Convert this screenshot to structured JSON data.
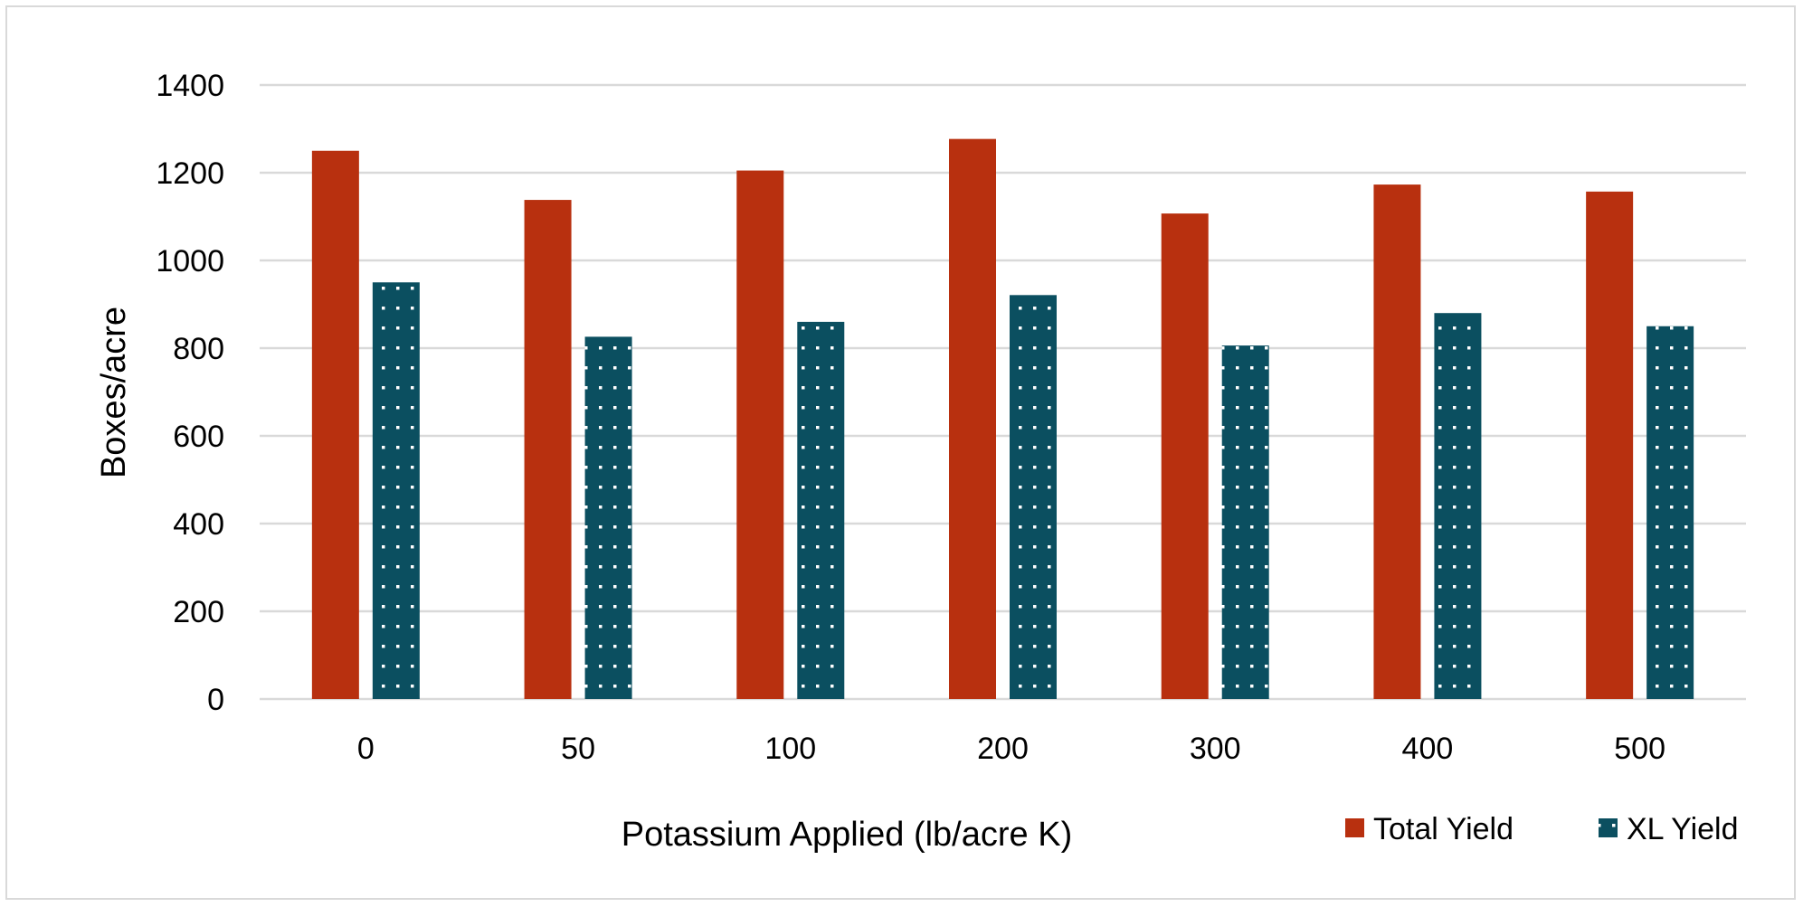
{
  "chart_data": {
    "type": "bar",
    "title": "",
    "xlabel": "Potassium Applied (lb/acre K)",
    "ylabel": "Boxes/acre",
    "categories": [
      "0",
      "50",
      "100",
      "200",
      "300",
      "400",
      "500"
    ],
    "series": [
      {
        "name": "Total Yield",
        "values": [
          1250,
          1138,
          1205,
          1277,
          1107,
          1173,
          1157
        ],
        "color": "#b8300f",
        "pattern": "solid"
      },
      {
        "name": "XL Yield",
        "values": [
          950,
          826,
          860,
          921,
          806,
          880,
          850
        ],
        "color": "#0b4f60",
        "pattern": "dotted"
      }
    ],
    "ylim": [
      0,
      1400
    ],
    "yticks": [
      0,
      200,
      400,
      600,
      800,
      1000,
      1200,
      1400
    ],
    "grid": true,
    "legend_position": "bottom-right"
  }
}
